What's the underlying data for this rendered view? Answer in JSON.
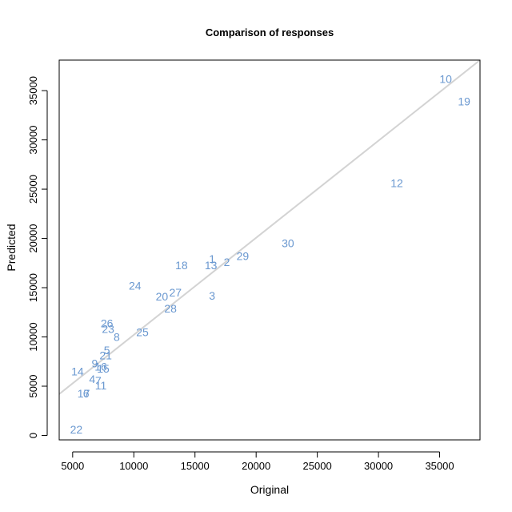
{
  "chart_data": {
    "type": "scatter",
    "title": "Comparison of responses",
    "xlabel": "Original",
    "ylabel": "Predicted",
    "xlim": [
      3900,
      38300
    ],
    "ylim": [
      -450,
      38100
    ],
    "xticks": [
      5000,
      10000,
      15000,
      20000,
      25000,
      30000,
      35000
    ],
    "yticks": [
      0,
      5000,
      10000,
      15000,
      20000,
      25000,
      30000,
      35000
    ],
    "point_color": "#6a98d0",
    "reference_line": {
      "color": "#d3d3d3",
      "from": [
        3900,
        4200
      ],
      "to": [
        38300,
        38100
      ]
    },
    "points": [
      {
        "label": "1",
        "x": 16400,
        "y": 17950
      },
      {
        "label": "2",
        "x": 17600,
        "y": 17600
      },
      {
        "label": "3",
        "x": 16400,
        "y": 14200
      },
      {
        "label": "4",
        "x": 6600,
        "y": 5750
      },
      {
        "label": "5",
        "x": 7800,
        "y": 8650
      },
      {
        "label": "6",
        "x": 6100,
        "y": 4250
      },
      {
        "label": "7",
        "x": 7100,
        "y": 5550
      },
      {
        "label": "8",
        "x": 8600,
        "y": 10000
      },
      {
        "label": "9",
        "x": 6800,
        "y": 7300
      },
      {
        "label": "10",
        "x": 35500,
        "y": 36200
      },
      {
        "label": "11",
        "x": 7300,
        "y": 5100
      },
      {
        "label": "12",
        "x": 31500,
        "y": 25600
      },
      {
        "label": "13",
        "x": 16300,
        "y": 17300
      },
      {
        "label": "14",
        "x": 5400,
        "y": 6500
      },
      {
        "label": "15",
        "x": 7500,
        "y": 6800
      },
      {
        "label": "16",
        "x": 7300,
        "y": 7000
      },
      {
        "label": "17",
        "x": 5900,
        "y": 4250
      },
      {
        "label": "18",
        "x": 13900,
        "y": 17300
      },
      {
        "label": "19",
        "x": 37000,
        "y": 33900
      },
      {
        "label": "20",
        "x": 12300,
        "y": 14100
      },
      {
        "label": "21",
        "x": 7700,
        "y": 8150
      },
      {
        "label": "22",
        "x": 5300,
        "y": 600
      },
      {
        "label": "23",
        "x": 7900,
        "y": 10800
      },
      {
        "label": "24",
        "x": 10100,
        "y": 15200
      },
      {
        "label": "25",
        "x": 10700,
        "y": 10500
      },
      {
        "label": "26",
        "x": 7800,
        "y": 11400
      },
      {
        "label": "27",
        "x": 13400,
        "y": 14500
      },
      {
        "label": "28",
        "x": 13000,
        "y": 12900
      },
      {
        "label": "29",
        "x": 18900,
        "y": 18200
      },
      {
        "label": "30",
        "x": 22600,
        "y": 19500
      }
    ]
  }
}
